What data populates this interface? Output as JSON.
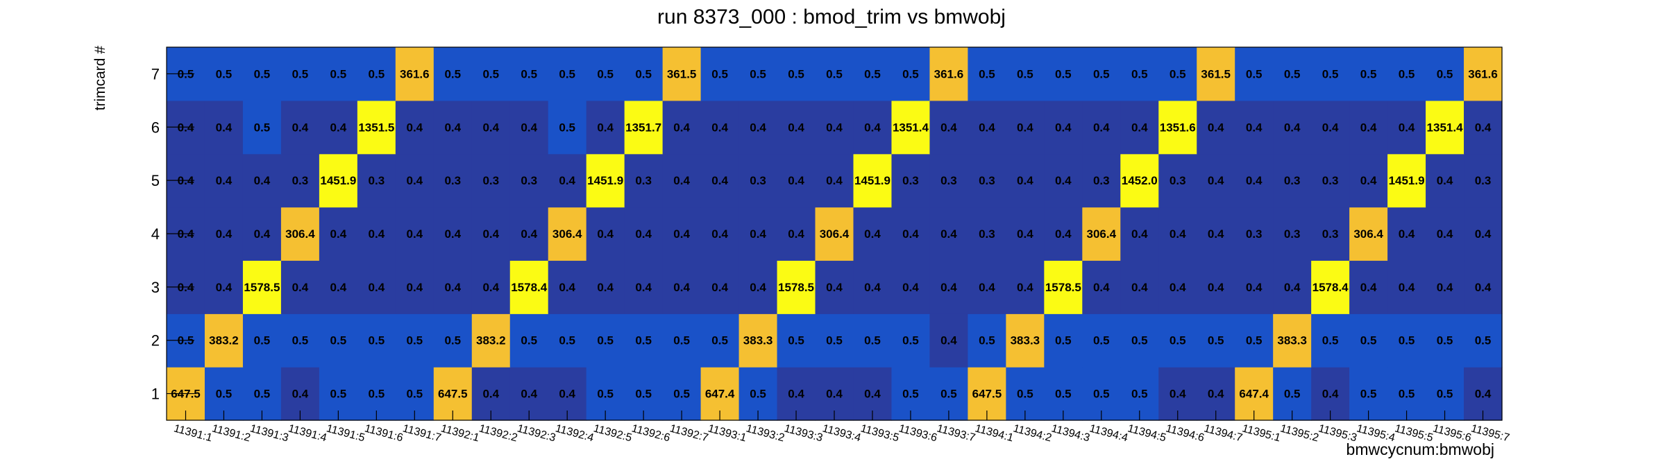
{
  "chart_data": {
    "type": "heatmap",
    "title": "run 8373_000 : bmod_trim vs bmwobj",
    "xlabel": "bmwcycnum:bmwobj",
    "ylabel": "trimcard #",
    "x_categories": [
      "11391:1",
      "11391:2",
      "11391:3",
      "11391:4",
      "11391:5",
      "11391:6",
      "11391:7",
      "11392:1",
      "11392:2",
      "11392:3",
      "11392:4",
      "11392:5",
      "11392:6",
      "11392:7",
      "11393:1",
      "11393:2",
      "11393:3",
      "11393:4",
      "11393:5",
      "11393:6",
      "11393:7",
      "11394:1",
      "11394:2",
      "11394:3",
      "11394:4",
      "11394:5",
      "11394:6",
      "11394:7",
      "11395:1",
      "11395:2",
      "11395:3",
      "11395:4",
      "11395:5",
      "11395:6",
      "11395:7"
    ],
    "y_categories": [
      "1",
      "2",
      "3",
      "4",
      "5",
      "6",
      "7"
    ],
    "values": [
      [
        "647.5",
        "0.5",
        "0.5",
        "0.4",
        "0.5",
        "0.5",
        "0.5",
        "647.5",
        "0.4",
        "0.4",
        "0.4",
        "0.5",
        "0.5",
        "0.5",
        "647.4",
        "0.5",
        "0.4",
        "0.4",
        "0.4",
        "0.5",
        "0.5",
        "647.5",
        "0.5",
        "0.5",
        "0.5",
        "0.5",
        "0.4",
        "0.4",
        "647.4",
        "0.5",
        "0.4",
        "0.5",
        "0.5",
        "0.5",
        "0.4"
      ],
      [
        "0.5",
        "383.2",
        "0.5",
        "0.5",
        "0.5",
        "0.5",
        "0.5",
        "0.5",
        "383.2",
        "0.5",
        "0.5",
        "0.5",
        "0.5",
        "0.5",
        "0.5",
        "383.3",
        "0.5",
        "0.5",
        "0.5",
        "0.5",
        "0.4",
        "0.5",
        "383.3",
        "0.5",
        "0.5",
        "0.5",
        "0.5",
        "0.5",
        "0.5",
        "383.3",
        "0.5",
        "0.5",
        "0.5",
        "0.5",
        "0.5"
      ],
      [
        "0.4",
        "0.4",
        "1578.5",
        "0.4",
        "0.4",
        "0.4",
        "0.4",
        "0.4",
        "0.4",
        "1578.4",
        "0.4",
        "0.4",
        "0.4",
        "0.4",
        "0.4",
        "0.4",
        "1578.5",
        "0.4",
        "0.4",
        "0.4",
        "0.4",
        "0.4",
        "0.4",
        "1578.5",
        "0.4",
        "0.4",
        "0.4",
        "0.4",
        "0.4",
        "0.4",
        "1578.4",
        "0.4",
        "0.4",
        "0.4",
        "0.4"
      ],
      [
        "0.4",
        "0.4",
        "0.4",
        "306.4",
        "0.4",
        "0.4",
        "0.4",
        "0.4",
        "0.4",
        "0.4",
        "306.4",
        "0.4",
        "0.4",
        "0.4",
        "0.4",
        "0.4",
        "0.4",
        "306.4",
        "0.4",
        "0.4",
        "0.4",
        "0.3",
        "0.4",
        "0.4",
        "306.4",
        "0.4",
        "0.4",
        "0.4",
        "0.3",
        "0.3",
        "0.3",
        "306.4",
        "0.4",
        "0.4",
        "0.4"
      ],
      [
        "0.4",
        "0.4",
        "0.4",
        "0.3",
        "1451.9",
        "0.3",
        "0.4",
        "0.3",
        "0.3",
        "0.3",
        "0.4",
        "1451.9",
        "0.3",
        "0.4",
        "0.4",
        "0.3",
        "0.4",
        "0.4",
        "1451.9",
        "0.3",
        "0.3",
        "0.3",
        "0.4",
        "0.4",
        "0.3",
        "1452.0",
        "0.3",
        "0.4",
        "0.4",
        "0.3",
        "0.3",
        "0.4",
        "1451.9",
        "0.4",
        "0.3"
      ],
      [
        "0.4",
        "0.4",
        "0.5",
        "0.4",
        "0.4",
        "1351.5",
        "0.4",
        "0.4",
        "0.4",
        "0.4",
        "0.5",
        "0.4",
        "1351.7",
        "0.4",
        "0.4",
        "0.4",
        "0.4",
        "0.4",
        "0.4",
        "1351.4",
        "0.4",
        "0.4",
        "0.4",
        "0.4",
        "0.4",
        "0.4",
        "1351.6",
        "0.4",
        "0.4",
        "0.4",
        "0.4",
        "0.4",
        "0.4",
        "1351.4",
        "0.4"
      ],
      [
        "0.5",
        "0.5",
        "0.5",
        "0.5",
        "0.5",
        "0.5",
        "361.6",
        "0.5",
        "0.5",
        "0.5",
        "0.5",
        "0.5",
        "0.5",
        "361.5",
        "0.5",
        "0.5",
        "0.5",
        "0.5",
        "0.5",
        "0.5",
        "361.6",
        "0.5",
        "0.5",
        "0.5",
        "0.5",
        "0.5",
        "0.5",
        "361.5",
        "0.5",
        "0.5",
        "0.5",
        "0.5",
        "0.5",
        "0.5",
        "361.6"
      ]
    ],
    "grid": false,
    "legend": "none",
    "colors": {
      "low": "#2a3da0",
      "mid_low": "#1a52c8",
      "mid": "#f5c032",
      "high": "#fbfb14",
      "text": "#000000",
      "axis": "#000000",
      "background": "#ffffff"
    }
  }
}
